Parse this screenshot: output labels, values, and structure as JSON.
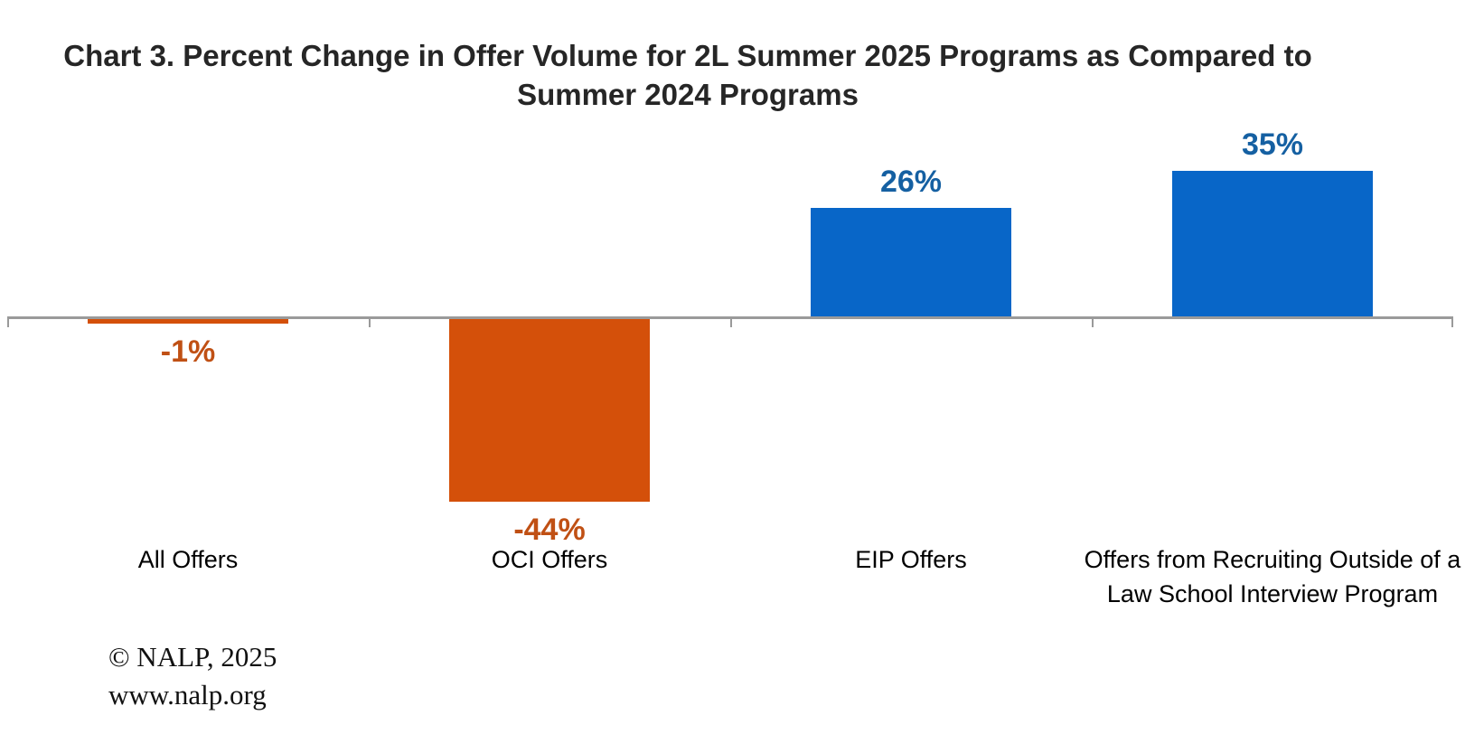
{
  "title": {
    "line1": "Chart 3. Percent Change in Offer Volume for 2L Summer 2025 Programs as Compared to",
    "line2": "Summer 2024 Programs"
  },
  "chart_data": {
    "type": "bar",
    "title": "Chart 3. Percent Change in Offer Volume for 2L Summer 2025 Programs as Compared to Summer 2024 Programs",
    "categories": [
      "All Offers",
      "OCI Offers",
      "EIP Offers",
      "Offers from Recruiting Outside of a Law School Interview Program"
    ],
    "values": [
      -1,
      -44,
      26,
      35
    ],
    "data_labels": [
      "-1%",
      "-44%",
      "26%",
      "35%"
    ],
    "unit": "percent",
    "baseline": 0,
    "legend": false,
    "value_axis_visible": false,
    "gridlines": false,
    "colors": {
      "positive_bar": "#0866C8",
      "negative_bar": "#D4500A",
      "positive_label": "#1560A2",
      "negative_label": "#C05014",
      "axis_line": "#9A9A9A",
      "category_label": "#000000",
      "title": "#262626"
    }
  },
  "footer": {
    "copyright": "© NALP, 2025",
    "website": "www.nalp.org"
  }
}
